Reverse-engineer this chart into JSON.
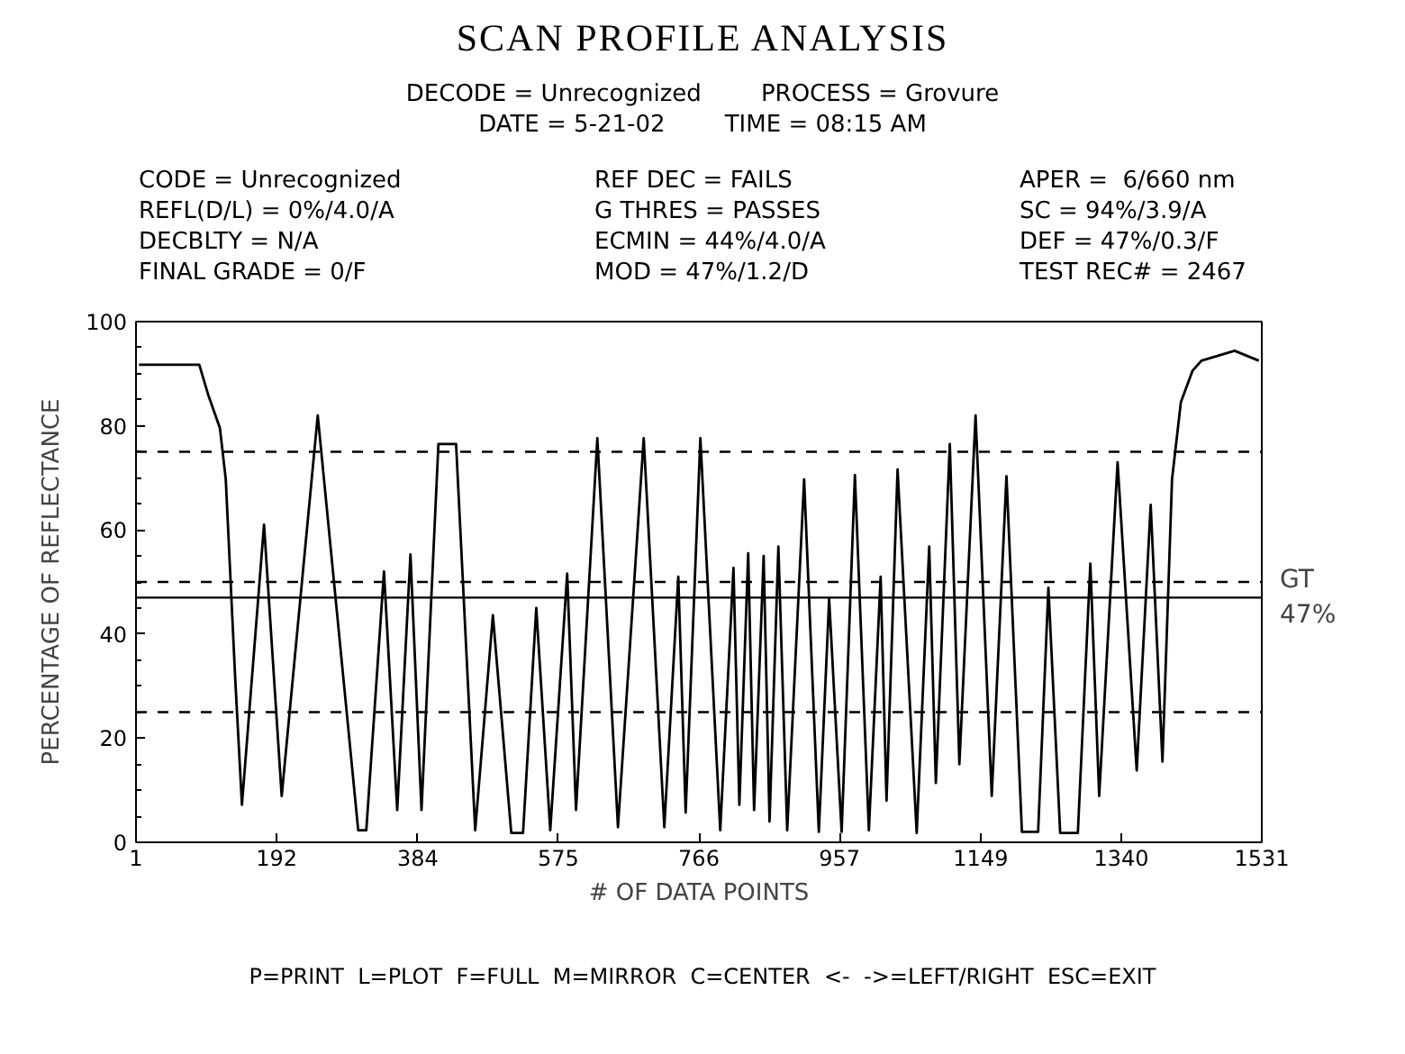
{
  "chart_data": {
    "type": "line",
    "title": "SCAN PROFILE ANALYSIS",
    "xlabel": "# OF DATA POINTS",
    "ylabel": "PERCENTAGE OF REFLECTANCE",
    "x": [
      5,
      87,
      99,
      115,
      123,
      136,
      145,
      175,
      199,
      248,
      303,
      314,
      338,
      356,
      374,
      389,
      412,
      436,
      462,
      486,
      511,
      527,
      545,
      564,
      587,
      599,
      628,
      656,
      691,
      719,
      738,
      748,
      768,
      795,
      813,
      821,
      833,
      841,
      854,
      862,
      874,
      886,
      909,
      929,
      943,
      960,
      978,
      997,
      1013,
      1021,
      1036,
      1062,
      1079,
      1088,
      1107,
      1120,
      1142,
      1164,
      1184,
      1205,
      1227,
      1241,
      1257,
      1281,
      1298,
      1310,
      1335,
      1361,
      1380,
      1396,
      1409,
      1421,
      1437,
      1449,
      1494,
      1527
    ],
    "series": [
      {
        "color": "#000000",
        "values": [
          91.7,
          91.7,
          86,
          79.6,
          69.7,
          31,
          7.2,
          61,
          8.9,
          82,
          2.3,
          2.3,
          52,
          6.2,
          55.3,
          6.2,
          76.5,
          76.5,
          2.3,
          43.6,
          1.8,
          1.8,
          45,
          2.3,
          51.6,
          6.2,
          77.6,
          2.9,
          77.6,
          2.9,
          51,
          5.7,
          77.6,
          2.3,
          52.7,
          7.2,
          55.5,
          6.2,
          55,
          4,
          56.8,
          2.3,
          69.7,
          2,
          46.7,
          2,
          70.5,
          2.3,
          51,
          8,
          71.6,
          1.8,
          56.8,
          11.4,
          76.5,
          15,
          82,
          8.9,
          70.3,
          2,
          2,
          48.9,
          1.8,
          1.8,
          53.5,
          8.9,
          73,
          13.8,
          64.8,
          15.5,
          69.7,
          84.5,
          90.6,
          92.5,
          94.4,
          92.5
        ]
      }
    ],
    "xlim": [
      1,
      1531
    ],
    "xticks": [
      1,
      192,
      384,
      575,
      766,
      957,
      1149,
      1340,
      1531
    ],
    "ylim": [
      0,
      100
    ],
    "yticks": [
      0,
      20,
      40,
      60,
      80,
      100
    ],
    "grid": false,
    "marker": "none",
    "line_style": "solid",
    "ref_lines": [
      {
        "axis": "y",
        "value": 75,
        "line_style": "dashed",
        "color": "#000000"
      },
      {
        "axis": "y",
        "value": 50,
        "line_style": "dashed",
        "color": "#000000"
      },
      {
        "axis": "y",
        "value": 47,
        "line_style": "solid",
        "color": "#000000",
        "label": "GT 47%"
      },
      {
        "axis": "y",
        "value": 25,
        "line_style": "dashed",
        "color": "#000000"
      }
    ],
    "annotations": [
      "DECODE = Unrecognized",
      "PROCESS = Grovure",
      "DATE = 5-21-02",
      "TIME = 08:15 AM",
      "CODE = Unrecognized",
      "REF DEC = FAILS",
      "APER =  6/660 nm",
      "REFL(D/L) = 0%/4.0/A",
      "G THRES = PASSES",
      "SC = 94%/3.9/A",
      "DECBLTY = N/A",
      "ECMIN = 44%/4.0/A",
      "DEF = 47%/0.3/F",
      "FINAL GRADE = 0/F",
      "MOD = 47%/1.2/D",
      "TEST REC# = 2467",
      "P=PRINT  L=PLOT  F=FULL  M=MIRROR  C=CENTER  <-  ->=LEFT/RIGHT  ESC=EXIT"
    ]
  }
}
